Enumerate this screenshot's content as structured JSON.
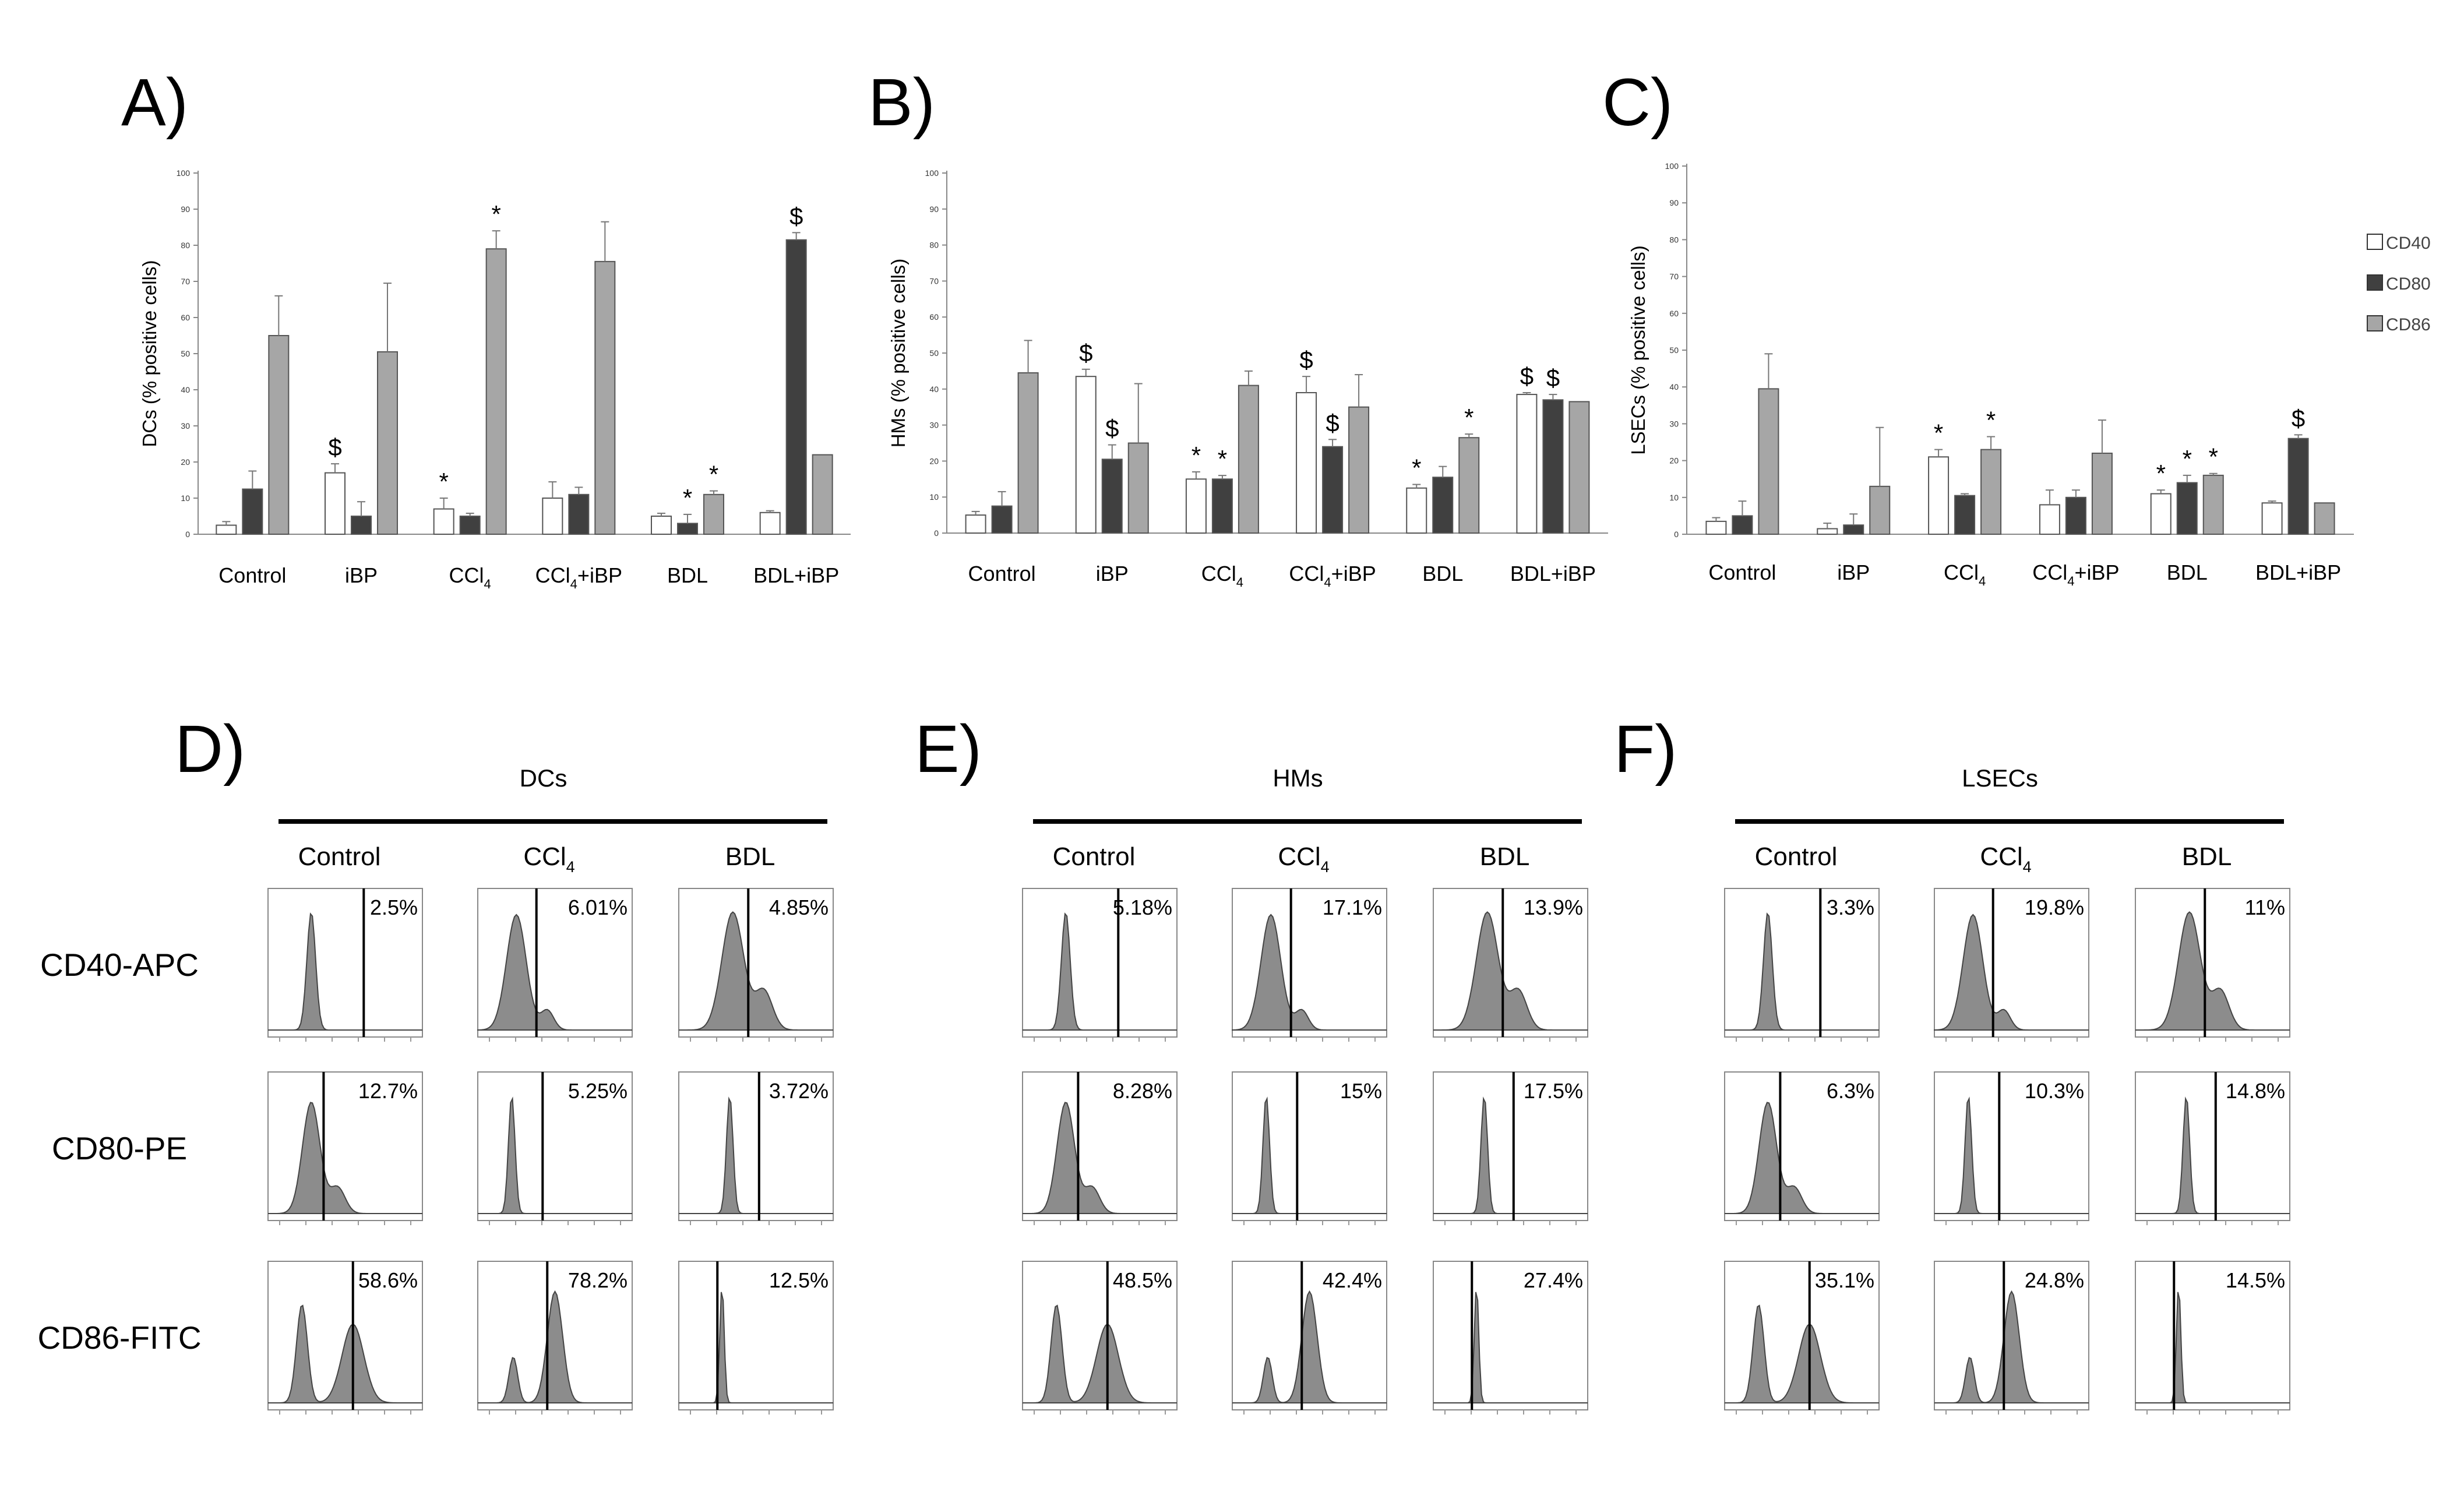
{
  "figure": {
    "legend": [
      {
        "label": "CD40",
        "color": "#ffffff"
      },
      {
        "label": "CD80",
        "color": "#404040"
      },
      {
        "label": "CD86",
        "color": "#a6a6a6"
      }
    ]
  },
  "chart_data": [
    {
      "panel": "A)",
      "type": "bar",
      "ylabel": "DCs (% positive cells)",
      "ylim": [
        0,
        100
      ],
      "yticks": [
        0,
        10,
        20,
        30,
        40,
        50,
        60,
        70,
        80,
        90,
        100
      ],
      "categories": [
        "Control",
        "iBP",
        "CCl4",
        "CCl4+iBP",
        "BDL",
        "BDL+iBP"
      ],
      "series": [
        {
          "name": "CD40",
          "values": [
            2.5,
            17,
            7,
            10,
            5,
            6
          ],
          "errors": [
            1,
            2.5,
            3,
            4.5,
            0.8,
            0.5
          ],
          "marks": [
            "",
            "$",
            "*",
            "",
            "",
            ""
          ]
        },
        {
          "name": "CD80",
          "values": [
            12.5,
            5,
            5,
            11,
            3,
            81.5
          ],
          "errors": [
            5,
            4,
            0.8,
            2,
            2.5,
            2
          ],
          "marks": [
            "",
            "",
            "",
            "",
            "*",
            "$"
          ]
        },
        {
          "name": "CD86",
          "values": [
            55,
            50.5,
            79,
            75.5,
            11,
            22
          ],
          "errors": [
            11,
            19,
            5,
            11,
            1,
            0
          ],
          "marks": [
            "",
            "",
            "*",
            "",
            "*",
            ""
          ]
        }
      ]
    },
    {
      "panel": "B)",
      "type": "bar",
      "ylabel": "HMs (% positive cells)",
      "ylim": [
        0,
        100
      ],
      "yticks": [
        0,
        10,
        20,
        30,
        40,
        50,
        60,
        70,
        80,
        90,
        100
      ],
      "categories": [
        "Control",
        "iBP",
        "CCl4",
        "CCl4+iBP",
        "BDL",
        "BDL+iBP"
      ],
      "series": [
        {
          "name": "CD40",
          "values": [
            5,
            43.5,
            15,
            39,
            12.5,
            38.5
          ],
          "errors": [
            1,
            2,
            2,
            4.5,
            1,
            0.5
          ],
          "marks": [
            "",
            "$",
            "*",
            "$",
            "*",
            "$"
          ]
        },
        {
          "name": "CD80",
          "values": [
            7.5,
            20.5,
            15,
            24,
            15.5,
            37
          ],
          "errors": [
            4,
            4,
            1,
            2,
            3,
            1.5
          ],
          "marks": [
            "",
            "$",
            "*",
            "$",
            "",
            "$"
          ]
        },
        {
          "name": "CD86",
          "values": [
            44.5,
            25,
            41,
            35,
            26.5,
            36.5
          ],
          "errors": [
            9,
            16.5,
            4,
            9,
            1,
            0
          ],
          "marks": [
            "",
            "",
            "",
            "",
            "*",
            ""
          ]
        }
      ]
    },
    {
      "panel": "C)",
      "type": "bar",
      "ylabel": "LSECs (% positive cells)",
      "ylim": [
        0,
        100
      ],
      "yticks": [
        0,
        10,
        20,
        30,
        40,
        50,
        60,
        70,
        80,
        90,
        100
      ],
      "categories": [
        "Control",
        "iBP",
        "CCl4",
        "CCl4+iBP",
        "BDL",
        "BDL+iBP"
      ],
      "series": [
        {
          "name": "CD40",
          "values": [
            3.5,
            1.5,
            21,
            8,
            11,
            8.5
          ],
          "errors": [
            1,
            1.5,
            2,
            4,
            1,
            0.5
          ],
          "marks": [
            "",
            "",
            "*",
            "",
            "*",
            ""
          ]
        },
        {
          "name": "CD80",
          "values": [
            5,
            2.5,
            10.5,
            10,
            14,
            26
          ],
          "errors": [
            4,
            3,
            0.5,
            2,
            2,
            1
          ],
          "marks": [
            "",
            "",
            "",
            "",
            "*",
            "$"
          ]
        },
        {
          "name": "CD86",
          "values": [
            39.5,
            13,
            23,
            22,
            16,
            8.5
          ],
          "errors": [
            9.5,
            16,
            3.5,
            9,
            0.5,
            0
          ],
          "marks": [
            "",
            "",
            "*",
            "",
            "*",
            ""
          ]
        }
      ]
    }
  ],
  "histograms": {
    "rows": [
      "CD40-APC",
      "CD80-PE",
      "CD86-FITC"
    ],
    "groups": [
      {
        "letter": "D)",
        "title": "DCs",
        "columns": [
          "Control",
          "CCl4",
          "BDL"
        ],
        "values": [
          [
            "2.5%",
            "6.01%",
            "4.85%"
          ],
          [
            "12.7%",
            "5.25%",
            "3.72%"
          ],
          [
            "58.6%",
            "78.2%",
            "12.5%"
          ]
        ]
      },
      {
        "letter": "E)",
        "title": "HMs",
        "columns": [
          "Control",
          "CCl4",
          "BDL"
        ],
        "values": [
          [
            "5.18%",
            "17.1%",
            "13.9%"
          ],
          [
            "8.28%",
            "15%",
            "17.5%"
          ],
          [
            "48.5%",
            "42.4%",
            "27.4%"
          ]
        ]
      },
      {
        "letter": "F)",
        "title": "LSECs",
        "columns": [
          "Control",
          "CCl4",
          "BDL"
        ],
        "values": [
          [
            "3.3%",
            "19.8%",
            "11%"
          ],
          [
            "6.3%",
            "10.3%",
            "14.8%"
          ],
          [
            "35.1%",
            "24.8%",
            "14.5%"
          ]
        ]
      }
    ]
  }
}
